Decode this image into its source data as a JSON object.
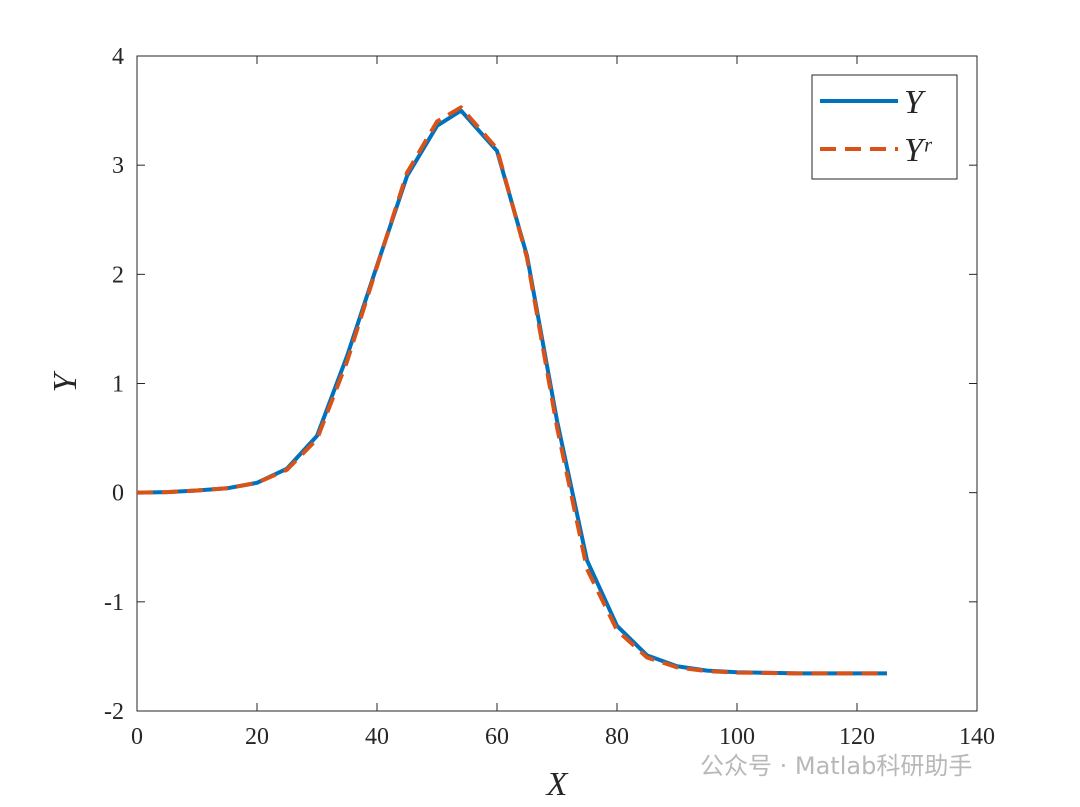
{
  "chart_data": {
    "type": "line",
    "x_label": "X",
    "y_label": "Y",
    "x": [
      0,
      5,
      10,
      15,
      20,
      25,
      30,
      35,
      40,
      45,
      50,
      54,
      60,
      65,
      70,
      75,
      80,
      85,
      90,
      95,
      100,
      105,
      110,
      115,
      120,
      125
    ],
    "series": [
      {
        "name": "Y",
        "color": "#0072bd",
        "dash": "solid",
        "values": [
          0,
          0.005,
          0.02,
          0.04,
          0.09,
          0.22,
          0.52,
          1.25,
          2.08,
          2.9,
          3.36,
          3.5,
          3.13,
          2.17,
          0.66,
          -0.62,
          -1.22,
          -1.49,
          -1.59,
          -1.63,
          -1.645,
          -1.65,
          -1.655,
          -1.655,
          -1.655,
          -1.655
        ]
      },
      {
        "name": "Yʳ",
        "color": "#d95319",
        "dash": "dashed",
        "values": [
          0,
          0.005,
          0.02,
          0.04,
          0.09,
          0.21,
          0.49,
          1.2,
          2.07,
          2.93,
          3.4,
          3.53,
          3.15,
          2.15,
          0.6,
          -0.7,
          -1.26,
          -1.51,
          -1.6,
          -1.635,
          -1.648,
          -1.652,
          -1.655,
          -1.655,
          -1.655,
          -1.655
        ]
      }
    ],
    "xlim": [
      0,
      140
    ],
    "xticks": [
      0,
      20,
      40,
      60,
      80,
      100,
      120,
      140
    ],
    "ylim": [
      -2,
      4
    ],
    "yticks": [
      -2,
      -1,
      0,
      1,
      2,
      3,
      4
    ],
    "legend": "upper right",
    "grid": false
  },
  "watermark": "公众号 · Matlab科研助手"
}
